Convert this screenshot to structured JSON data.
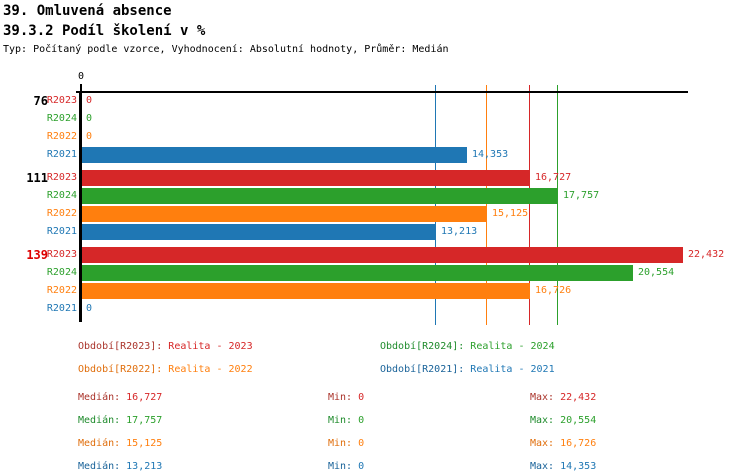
{
  "header": {
    "title_line1": "39. Omluvená absence",
    "title_line2": "39.3.2 Podíl školení v %",
    "subtitle": "Typ: Počítaný podle vzorce, Vyhodnocení: Absolutní hodnoty, Průměr: Medián"
  },
  "chart_data": {
    "type": "bar",
    "orientation": "horizontal",
    "title": "39.3.2 Podíl školení v %",
    "axis_tick_label": "0",
    "xlim": [
      0,
      22432
    ],
    "grid": "median-reference-lines-only",
    "series_colors": {
      "R2023": "#d62728",
      "R2024": "#2ca02c",
      "R2022": "#ff7f0e",
      "R2021": "#1f77b4"
    },
    "series_dark_colors": {
      "R2023": "#aa342b",
      "R2024": "#1f8b2c",
      "R2022": "#e06e0c",
      "R2021": "#1a6399"
    },
    "groups": [
      {
        "label": "76",
        "label_color": "#000000",
        "bars": [
          {
            "series": "R2023",
            "value": 0,
            "display": "0"
          },
          {
            "series": "R2024",
            "value": 0,
            "display": "0"
          },
          {
            "series": "R2022",
            "value": 0,
            "display": "0"
          },
          {
            "series": "R2021",
            "value": 14353,
            "display": "14,353"
          }
        ]
      },
      {
        "label": "111",
        "label_color": "#000000",
        "bars": [
          {
            "series": "R2023",
            "value": 16727,
            "display": "16,727"
          },
          {
            "series": "R2024",
            "value": 17757,
            "display": "17,757"
          },
          {
            "series": "R2022",
            "value": 15125,
            "display": "15,125"
          },
          {
            "series": "R2021",
            "value": 13213,
            "display": "13,213"
          }
        ]
      },
      {
        "label": "139",
        "label_color": "#dd0000",
        "bars": [
          {
            "series": "R2023",
            "value": 22432,
            "display": "22,432"
          },
          {
            "series": "R2024",
            "value": 20554,
            "display": "20,554"
          },
          {
            "series": "R2022",
            "value": 16726,
            "display": "16,726"
          },
          {
            "series": "R2021",
            "value": 0,
            "display": "0"
          }
        ]
      }
    ],
    "median_lines": [
      {
        "series": "R2023",
        "value": 16727
      },
      {
        "series": "R2024",
        "value": 17757
      },
      {
        "series": "R2022",
        "value": 15125
      },
      {
        "series": "R2021",
        "value": 13213
      }
    ]
  },
  "legend": {
    "items": [
      {
        "series": "R2023",
        "label": "Období[R2023]:",
        "value": "Realita - 2023"
      },
      {
        "series": "R2024",
        "label": "Období[R2024]:",
        "value": "Realita - 2024"
      },
      {
        "series": "R2022",
        "label": "Období[R2022]:",
        "value": "Realita - 2022"
      },
      {
        "series": "R2021",
        "label": "Období[R2021]:",
        "value": "Realita - 2021"
      }
    ]
  },
  "stats": {
    "median_label": "Medián:",
    "min_label": "Min:",
    "max_label": "Max:",
    "rows": [
      {
        "series": "R2023",
        "median": "16,727",
        "min": "0",
        "max": "22,432"
      },
      {
        "series": "R2024",
        "median": "17,757",
        "min": "0",
        "max": "20,554"
      },
      {
        "series": "R2022",
        "median": "15,125",
        "min": "0",
        "max": "16,726"
      },
      {
        "series": "R2021",
        "median": "13,213",
        "min": "0",
        "max": "14,353"
      }
    ]
  }
}
